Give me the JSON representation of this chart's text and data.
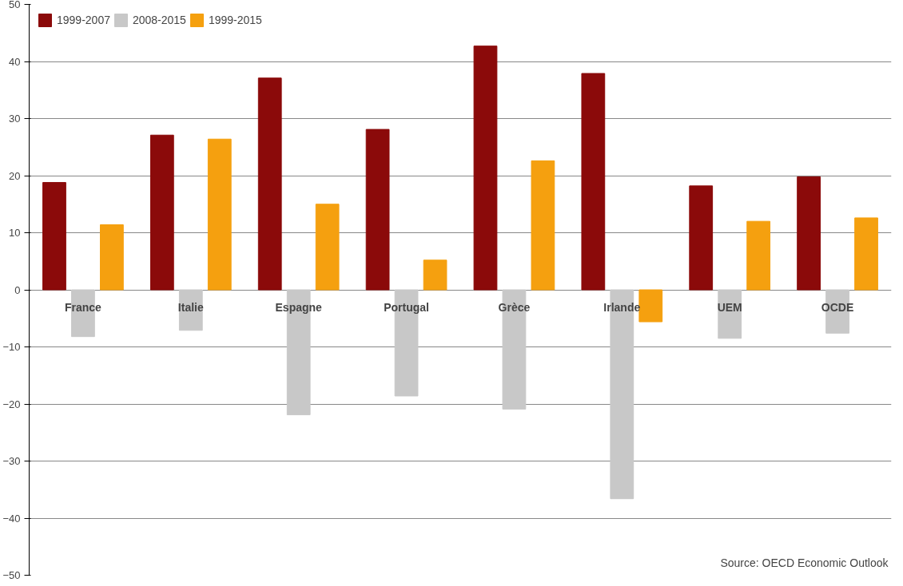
{
  "chart_data": {
    "type": "bar",
    "categories": [
      "France",
      "Italie",
      "Espagne",
      "Portugal",
      "Grèce",
      "Irlande",
      "UEM",
      "OCDE"
    ],
    "series": [
      {
        "name": "1999-2007",
        "color": "#8b0a0a",
        "values": [
          18.8,
          27.1,
          37.1,
          28.1,
          42.7,
          37.9,
          18.2,
          19.8
        ]
      },
      {
        "name": "2008-2015",
        "color": "#c8c8c8",
        "values": [
          -8.2,
          -7.1,
          -21.9,
          -18.6,
          -20.9,
          -36.6,
          -8.5,
          -7.6
        ]
      },
      {
        "name": "1999-2015",
        "color": "#f5a00f",
        "values": [
          11.4,
          26.4,
          15.0,
          5.2,
          22.6,
          -5.6,
          12.0,
          12.6
        ]
      }
    ],
    "ylim": [
      -50,
      50
    ],
    "yticks": [
      -50,
      -40,
      -30,
      -20,
      -10,
      0,
      10,
      20,
      30,
      40,
      50
    ],
    "grid": "y",
    "legend": "top left",
    "annotations": [
      "Source: OECD Economic Outlook"
    ]
  }
}
